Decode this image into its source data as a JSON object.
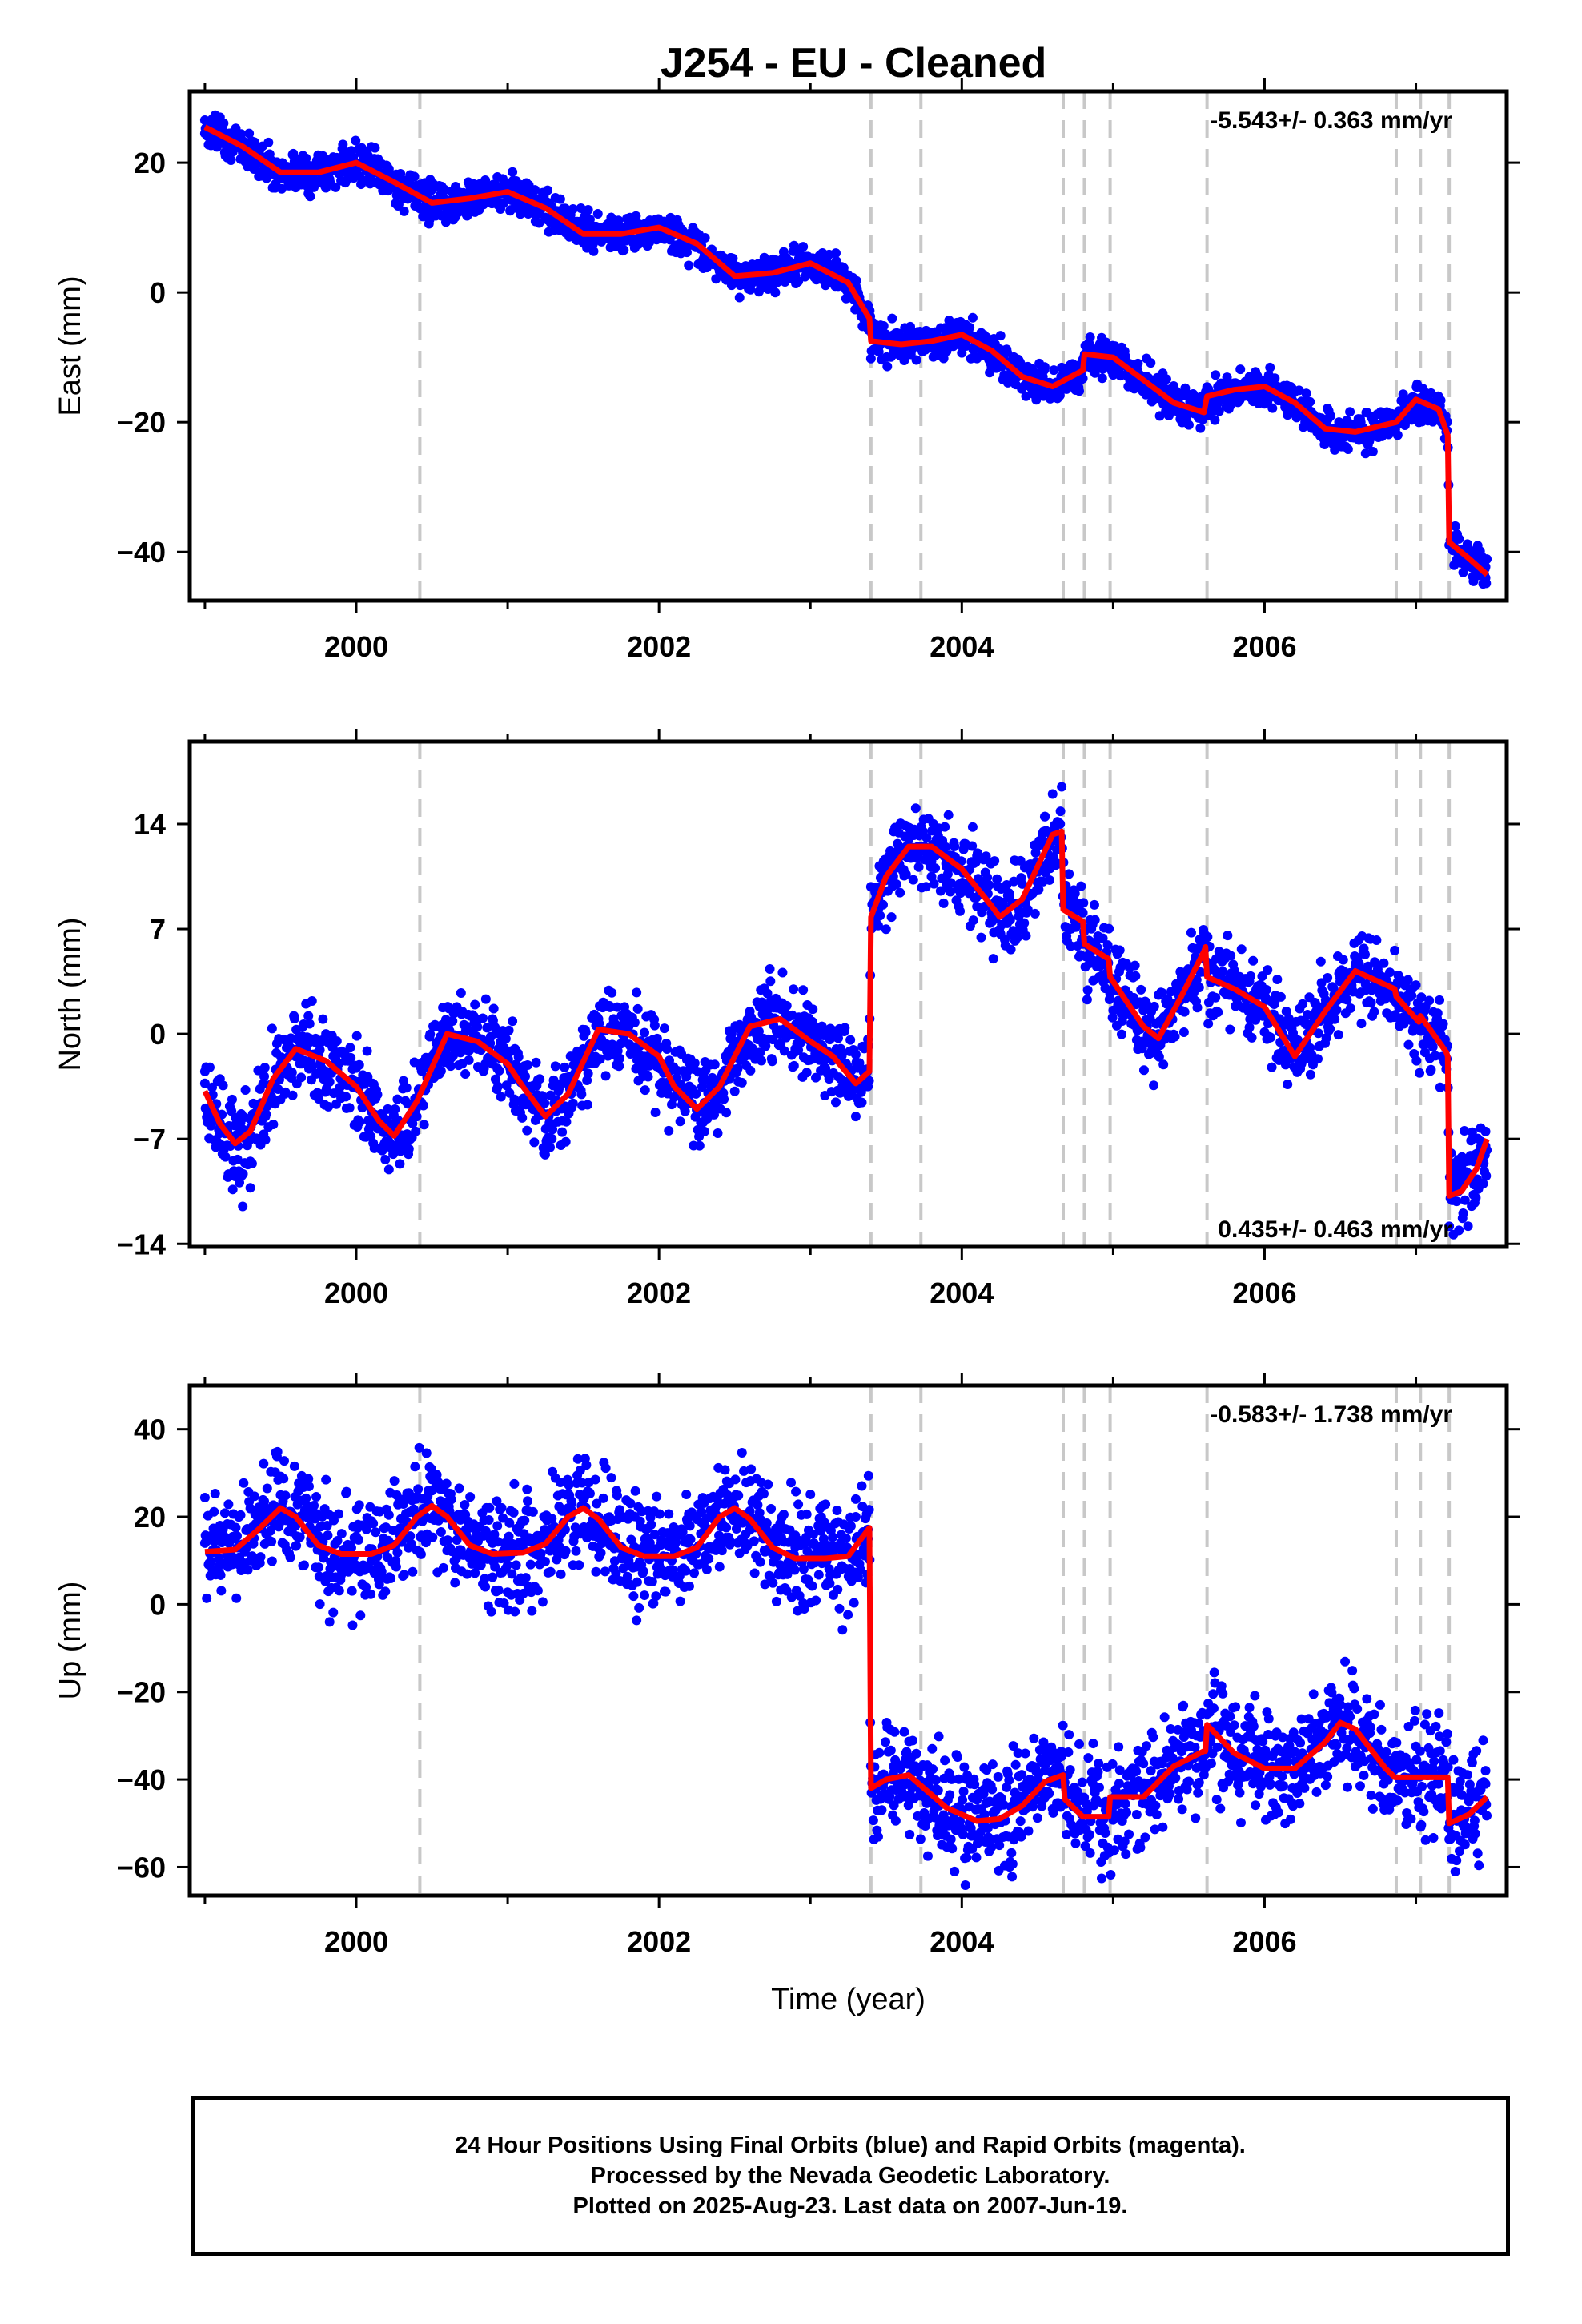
{
  "title": "J254  - EU - Cleaned",
  "footer": {
    "line1": "24 Hour Positions Using Final Orbits (blue) and Rapid Orbits (magenta).",
    "line2": "Processed by the Nevada Geodetic Laboratory.",
    "line3": "Plotted on 2025-Aug-23. Last data on 2007-Jun-19."
  },
  "colors": {
    "points": "#0000ff",
    "model": "#ff0000",
    "breaks": "#c8c8c8"
  },
  "chart_data": [
    {
      "type": "scatter",
      "ylabel": "East (mm)",
      "xlabel": "",
      "rate": "-5.543+/- 0.363 mm/yr",
      "xlim": [
        1998.9,
        2007.6
      ],
      "ylim": [
        -47.5,
        31
      ],
      "xticks": [
        "2000",
        "2002",
        "2004",
        "2006"
      ],
      "yticks": [
        "-40",
        "-20",
        "0",
        "20"
      ],
      "breaks": [
        2000.42,
        2003.4,
        2003.73,
        2004.67,
        2004.81,
        2004.98,
        2005.62,
        2006.87,
        2007.03,
        2007.22
      ],
      "model": {
        "x": [
          1999.0,
          1999.25,
          1999.5,
          1999.75,
          2000.0,
          2000.25,
          2000.5,
          2000.75,
          2001.0,
          2001.25,
          2001.5,
          2001.75,
          2002.0,
          2002.25,
          2002.5,
          2002.75,
          2003.0,
          2003.25,
          2003.39,
          2003.4,
          2003.6,
          2003.8,
          2004.0,
          2004.2,
          2004.4,
          2004.6,
          2004.8,
          2004.81,
          2005.0,
          2005.2,
          2005.4,
          2005.6,
          2005.62,
          2005.8,
          2006.0,
          2006.2,
          2006.4,
          2006.6,
          2006.87,
          2007.0,
          2007.15,
          2007.21,
          2007.22,
          2007.35,
          2007.47
        ],
        "y": [
          25.5,
          22.5,
          18.5,
          18.5,
          20.0,
          17.0,
          13.8,
          14.5,
          15.5,
          13.0,
          9.0,
          9.0,
          10.0,
          7.5,
          2.5,
          3.0,
          4.5,
          1.5,
          -4.0,
          -7.5,
          -8.0,
          -7.5,
          -6.5,
          -9.0,
          -13.0,
          -14.5,
          -12.0,
          -9.5,
          -10.0,
          -13.5,
          -17.0,
          -18.5,
          -16.0,
          -15.0,
          -14.5,
          -17.0,
          -21.0,
          -21.5,
          -20.0,
          -16.5,
          -18.0,
          -22.0,
          -38.5,
          -41.0,
          -43.5
        ]
      },
      "points": {
        "x": [
          1999.0,
          1999.05,
          1999.1,
          1999.15,
          1999.2,
          1999.25,
          1999.3,
          1999.4,
          1999.5,
          1999.6,
          1999.7,
          1999.8,
          1999.9,
          2000.0,
          2000.1,
          2000.2,
          2000.3,
          2000.4,
          2000.5,
          2000.6,
          2000.7,
          2000.8,
          2000.9,
          2001.0,
          2001.1,
          2001.2,
          2001.3,
          2001.4,
          2001.5,
          2001.6,
          2001.7,
          2001.8,
          2001.9,
          2002.0,
          2002.1,
          2002.2,
          2002.3,
          2002.4,
          2002.5,
          2002.6,
          2002.7,
          2002.8,
          2002.9,
          2003.0,
          2003.1,
          2003.2,
          2003.3,
          2003.38,
          2003.45,
          2003.55,
          2003.65,
          2003.75,
          2003.85,
          2003.95,
          2004.05,
          2004.15,
          2004.25,
          2004.35,
          2004.45,
          2004.55,
          2004.65,
          2004.75,
          2004.85,
          2004.95,
          2005.05,
          2005.15,
          2005.25,
          2005.35,
          2005.45,
          2005.55,
          2005.65,
          2005.75,
          2005.85,
          2005.95,
          2006.05,
          2006.15,
          2006.25,
          2006.35,
          2006.45,
          2006.55,
          2006.65,
          2006.75,
          2006.85,
          2006.95,
          2007.05,
          2007.15,
          2007.2,
          2007.25,
          2007.3,
          2007.35,
          2007.4,
          2007.46
        ],
        "y": [
          24.5,
          26.0,
          27.0,
          24.0,
          22.5,
          21.5,
          21.0,
          19.0,
          18.0,
          17.5,
          19.5,
          20.5,
          20.0,
          19.5,
          18.0,
          17.5,
          15.5,
          14.0,
          13.5,
          14.0,
          14.5,
          15.0,
          15.5,
          15.0,
          14.5,
          13.0,
          11.5,
          9.5,
          8.5,
          9.0,
          9.5,
          10.0,
          10.5,
          10.0,
          9.0,
          8.0,
          6.0,
          3.5,
          2.5,
          2.5,
          3.0,
          3.5,
          4.5,
          5.0,
          4.0,
          2.5,
          0.5,
          -3.5,
          -7.5,
          -8.0,
          -8.0,
          -7.5,
          -7.0,
          -6.5,
          -6.5,
          -7.5,
          -9.0,
          -11.5,
          -13.0,
          -14.0,
          -14.5,
          -13.5,
          -10.5,
          -9.5,
          -10.5,
          -12.5,
          -14.5,
          -16.0,
          -17.5,
          -18.0,
          -16.0,
          -15.5,
          -15.0,
          -14.5,
          -14.5,
          -15.5,
          -17.5,
          -19.5,
          -21.0,
          -21.5,
          -21.0,
          -20.5,
          -19.5,
          -17.0,
          -17.5,
          -19.0,
          -21.5,
          -39.0,
          -40.5,
          -41.5,
          -42.5,
          -44.0
        ]
      }
    },
    {
      "type": "scatter",
      "ylabel": "North (mm)",
      "xlabel": "",
      "rate": "0.435+/- 0.463 mm/yr",
      "xlim": [
        1998.9,
        2007.6
      ],
      "ylim": [
        -14.2,
        19.5
      ],
      "xticks": [
        "2000",
        "2002",
        "2004",
        "2006"
      ],
      "yticks": [
        "-14",
        "-7",
        "0",
        "7",
        "14"
      ],
      "breaks": [
        2000.42,
        2003.4,
        2003.73,
        2004.67,
        2004.81,
        2004.98,
        2005.62,
        2006.87,
        2007.03,
        2007.22
      ],
      "model": {
        "x": [
          1999.0,
          1999.1,
          1999.2,
          1999.3,
          1999.45,
          1999.6,
          1999.8,
          2000.0,
          2000.15,
          2000.25,
          2000.4,
          2000.6,
          2000.8,
          2001.0,
          2001.1,
          2001.25,
          2001.4,
          2001.6,
          2001.8,
          2002.0,
          2002.1,
          2002.25,
          2002.4,
          2002.6,
          2002.8,
          2003.0,
          2003.15,
          2003.3,
          2003.39,
          2003.4,
          2003.5,
          2003.65,
          2003.8,
          2004.0,
          2004.2,
          2004.25,
          2004.4,
          2004.6,
          2004.66,
          2004.67,
          2004.8,
          2004.81,
          2004.97,
          2004.98,
          2005.2,
          2005.3,
          2005.45,
          2005.6,
          2005.61,
          2005.62,
          2005.8,
          2006.0,
          2006.2,
          2006.4,
          2006.6,
          2006.86,
          2006.87,
          2007.02,
          2007.03,
          2007.2,
          2007.21,
          2007.22,
          2007.3,
          2007.4,
          2007.47
        ],
        "y": [
          -3.8,
          -6.0,
          -7.3,
          -6.5,
          -3.0,
          -1.0,
          -1.8,
          -3.5,
          -5.8,
          -6.8,
          -4.5,
          0.0,
          -0.5,
          -2.0,
          -3.5,
          -5.5,
          -4.0,
          0.3,
          0.0,
          -1.5,
          -3.5,
          -5.0,
          -3.5,
          0.5,
          1.0,
          -0.5,
          -1.5,
          -3.3,
          -2.5,
          7.8,
          10.5,
          12.5,
          12.5,
          11.0,
          8.5,
          7.8,
          9.0,
          13.3,
          13.5,
          8.3,
          7.5,
          6.0,
          5.0,
          3.8,
          0.5,
          -0.3,
          2.5,
          5.5,
          5.8,
          3.8,
          3.0,
          1.8,
          -1.5,
          1.5,
          4.2,
          3.0,
          2.5,
          0.8,
          1.2,
          -1.2,
          -1.5,
          -10.8,
          -10.5,
          -9.0,
          -7.0
        ]
      },
      "points": {
        "x": [
          1999.0,
          1999.05,
          1999.1,
          1999.15,
          1999.2,
          1999.25,
          1999.3,
          1999.35,
          1999.4,
          1999.45,
          1999.5,
          1999.6,
          1999.7,
          1999.8,
          1999.9,
          2000.0,
          2000.1,
          2000.2,
          2000.3,
          2000.4,
          2000.5,
          2000.6,
          2000.7,
          2000.8,
          2000.9,
          2001.0,
          2001.1,
          2001.2,
          2001.3,
          2001.4,
          2001.5,
          2001.6,
          2001.7,
          2001.8,
          2001.9,
          2002.0,
          2002.1,
          2002.2,
          2002.3,
          2002.4,
          2002.5,
          2002.6,
          2002.7,
          2002.8,
          2002.9,
          2003.0,
          2003.1,
          2003.2,
          2003.3,
          2003.38,
          2003.45,
          2003.5,
          2003.55,
          2003.6,
          2003.65,
          2003.7,
          2003.8,
          2003.9,
          2004.0,
          2004.1,
          2004.2,
          2004.3,
          2004.4,
          2004.5,
          2004.55,
          2004.6,
          2004.65,
          2004.7,
          2004.75,
          2004.8,
          2004.85,
          2004.9,
          2004.95,
          2005.0,
          2005.1,
          2005.2,
          2005.3,
          2005.4,
          2005.5,
          2005.6,
          2005.7,
          2005.8,
          2005.9,
          2006.0,
          2006.1,
          2006.2,
          2006.3,
          2006.4,
          2006.5,
          2006.6,
          2006.7,
          2006.8,
          2006.9,
          2007.0,
          2007.1,
          2007.2,
          2007.23,
          2007.28,
          2007.33,
          2007.38,
          2007.43,
          2007.46
        ],
        "y": [
          -2.5,
          -5.0,
          -3.0,
          -6.5,
          -9.5,
          -11.5,
          -8.5,
          -7.0,
          -5.5,
          -3.5,
          -2.0,
          -1.5,
          -0.5,
          -2.5,
          -3.0,
          -3.5,
          -4.5,
          -6.5,
          -7.5,
          -5.5,
          -1.5,
          0.5,
          1.5,
          -1.0,
          -2.0,
          -1.5,
          -2.5,
          -4.5,
          -6.0,
          -5.0,
          -1.0,
          1.0,
          1.0,
          0.5,
          -1.5,
          -2.0,
          -3.5,
          -4.5,
          -6.5,
          -3.5,
          -0.5,
          1.5,
          1.0,
          0.0,
          -1.0,
          -0.5,
          -1.5,
          -3.0,
          -5.5,
          -3.5,
          9.0,
          11.5,
          13.5,
          14.0,
          13.0,
          12.0,
          11.5,
          10.0,
          9.5,
          8.5,
          7.5,
          8.0,
          10.0,
          12.5,
          14.5,
          16.0,
          14.0,
          8.5,
          7.5,
          6.0,
          5.5,
          4.5,
          4.0,
          3.0,
          1.5,
          -0.5,
          0.0,
          2.0,
          4.0,
          5.0,
          5.5,
          3.0,
          3.5,
          2.5,
          1.0,
          -0.5,
          -1.5,
          1.0,
          3.5,
          4.5,
          4.0,
          3.0,
          2.5,
          1.5,
          0.5,
          -1.0,
          -11.0,
          -10.5,
          -9.5,
          -8.5,
          -7.5,
          -6.5
        ]
      }
    },
    {
      "type": "scatter",
      "ylabel": "Up (mm)",
      "xlabel": "Time (year)",
      "rate": "-0.583+/- 1.738 mm/yr",
      "xlim": [
        1998.9,
        2007.6
      ],
      "ylim": [
        -66.5,
        50
      ],
      "xticks": [
        "2000",
        "2002",
        "2004",
        "2006"
      ],
      "yticks": [
        "-60",
        "-40",
        "-20",
        "0",
        "20",
        "40"
      ],
      "breaks": [
        2000.42,
        2003.4,
        2003.73,
        2004.67,
        2004.81,
        2004.98,
        2005.62,
        2006.87,
        2007.03,
        2007.22
      ],
      "model": {
        "x": [
          1999.0,
          1999.2,
          1999.35,
          1999.5,
          1999.6,
          1999.75,
          1999.9,
          2000.1,
          2000.25,
          2000.4,
          2000.5,
          2000.6,
          2000.75,
          2000.9,
          2001.1,
          2001.25,
          2001.4,
          2001.5,
          2001.6,
          2001.75,
          2001.9,
          2002.1,
          2002.25,
          2002.4,
          2002.5,
          2002.6,
          2002.75,
          2002.9,
          2003.1,
          2003.25,
          2003.39,
          2003.4,
          2003.5,
          2003.65,
          2003.8,
          2003.9,
          2004.1,
          2004.25,
          2004.4,
          2004.55,
          2004.67,
          2004.68,
          2004.8,
          2004.81,
          2004.97,
          2004.98,
          2005.2,
          2005.4,
          2005.6,
          2005.61,
          2005.62,
          2005.8,
          2006.0,
          2006.2,
          2006.4,
          2006.5,
          2006.6,
          2006.8,
          2006.86,
          2006.87,
          2007.02,
          2007.03,
          2007.21,
          2007.22,
          2007.35,
          2007.47
        ],
        "y": [
          12.0,
          12.5,
          17.0,
          22.0,
          20.0,
          13.5,
          11.5,
          11.5,
          13.5,
          20.0,
          22.5,
          20.0,
          13.5,
          11.5,
          11.8,
          13.8,
          20.0,
          22.0,
          19.5,
          13.0,
          11.0,
          11.0,
          13.0,
          20.0,
          22.0,
          19.5,
          13.0,
          10.5,
          10.5,
          11.0,
          17.5,
          -42.0,
          -40.0,
          -39.0,
          -43.5,
          -46.5,
          -49.5,
          -49.0,
          -46.0,
          -40.5,
          -39.0,
          -44.5,
          -48.5,
          -48.5,
          -48.5,
          -44.0,
          -44.0,
          -37.0,
          -33.5,
          -33.5,
          -27.5,
          -34.0,
          -37.5,
          -37.5,
          -31.5,
          -27.0,
          -28.5,
          -37.5,
          -39.5,
          -39.5,
          -39.5,
          -39.5,
          -39.5,
          -50.0,
          -48.0,
          -44.0
        ]
      },
      "points": {
        "x": [
          1999.0,
          1999.05,
          1999.1,
          1999.15,
          1999.2,
          1999.3,
          1999.4,
          1999.5,
          1999.6,
          1999.7,
          1999.8,
          1999.9,
          2000.0,
          2000.1,
          2000.2,
          2000.3,
          2000.4,
          2000.5,
          2000.6,
          2000.7,
          2000.8,
          2000.9,
          2001.0,
          2001.1,
          2001.2,
          2001.3,
          2001.4,
          2001.5,
          2001.6,
          2001.7,
          2001.8,
          2001.9,
          2002.0,
          2002.1,
          2002.2,
          2002.3,
          2002.4,
          2002.5,
          2002.6,
          2002.7,
          2002.8,
          2002.9,
          2003.0,
          2003.1,
          2003.2,
          2003.3,
          2003.38,
          2003.45,
          2003.55,
          2003.65,
          2003.75,
          2003.85,
          2003.95,
          2004.05,
          2004.15,
          2004.25,
          2004.35,
          2004.45,
          2004.55,
          2004.65,
          2004.75,
          2004.85,
          2004.95,
          2005.05,
          2005.15,
          2005.25,
          2005.35,
          2005.45,
          2005.55,
          2005.65,
          2005.75,
          2005.85,
          2005.95,
          2006.05,
          2006.15,
          2006.25,
          2006.35,
          2006.45,
          2006.55,
          2006.65,
          2006.75,
          2006.85,
          2006.95,
          2007.05,
          2007.15,
          2007.25,
          2007.3,
          2007.35,
          2007.4,
          2007.46
        ],
        "y": [
          14.0,
          8.0,
          18.0,
          11.0,
          15.0,
          10.0,
          22.0,
          25.0,
          18.0,
          14.0,
          12.0,
          8.0,
          15.0,
          10.0,
          13.0,
          16.0,
          20.0,
          26.0,
          21.0,
          16.0,
          11.0,
          14.0,
          9.0,
          14.0,
          12.0,
          17.0,
          22.0,
          24.0,
          20.0,
          15.0,
          10.0,
          12.0,
          9.0,
          13.0,
          15.0,
          18.0,
          23.0,
          20.0,
          17.0,
          12.0,
          9.0,
          13.0,
          11.0,
          10.0,
          14.0,
          20.0,
          15.0,
          -40.0,
          -37.0,
          -41.0,
          -44.0,
          -46.0,
          -49.0,
          -50.0,
          -48.0,
          -46.0,
          -43.0,
          -40.0,
          -38.0,
          -41.0,
          -45.0,
          -49.0,
          -47.0,
          -44.0,
          -42.0,
          -38.0,
          -35.0,
          -33.0,
          -30.0,
          -28.0,
          -32.0,
          -36.0,
          -38.0,
          -37.0,
          -36.0,
          -34.0,
          -31.0,
          -28.0,
          -27.0,
          -29.0,
          -33.0,
          -38.0,
          -40.0,
          -39.0,
          -41.0,
          -48.0,
          -47.0,
          -45.0,
          -43.0,
          -41.0
        ]
      }
    }
  ]
}
